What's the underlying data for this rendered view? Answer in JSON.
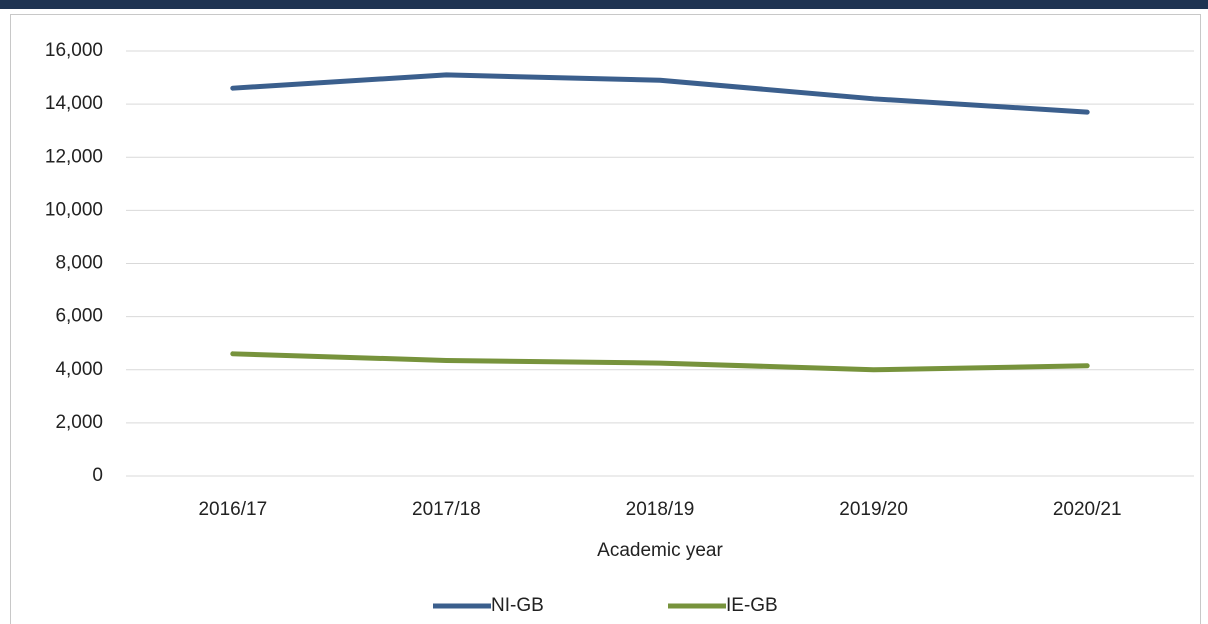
{
  "chart_data": {
    "type": "line",
    "x_label": "Academic year",
    "categories": [
      "2016/17",
      "2017/18",
      "2018/19",
      "2019/20",
      "2020/21"
    ],
    "series": [
      {
        "name": "NI-GB",
        "color": "#3b5f8d",
        "values": [
          14600,
          15100,
          14900,
          14200,
          13700
        ]
      },
      {
        "name": "IE-GB",
        "color": "#77933c",
        "values": [
          4600,
          4350,
          4250,
          4000,
          4150
        ]
      }
    ],
    "ylim": [
      0,
      16000
    ],
    "yticks": [
      0,
      {
        "value": 2000,
        "label": "2,000"
      },
      {
        "value": 4000,
        "label": "4,000"
      },
      {
        "value": 6000,
        "label": "6,000"
      },
      {
        "value": 8000,
        "label": "8,000"
      },
      {
        "value": 10000,
        "label": "10,000"
      },
      {
        "value": 12000,
        "label": "12,000"
      },
      {
        "value": 14000,
        "label": "14,000"
      },
      {
        "value": 16000,
        "label": "16,000"
      }
    ],
    "grid": true,
    "legend": "bottom"
  }
}
